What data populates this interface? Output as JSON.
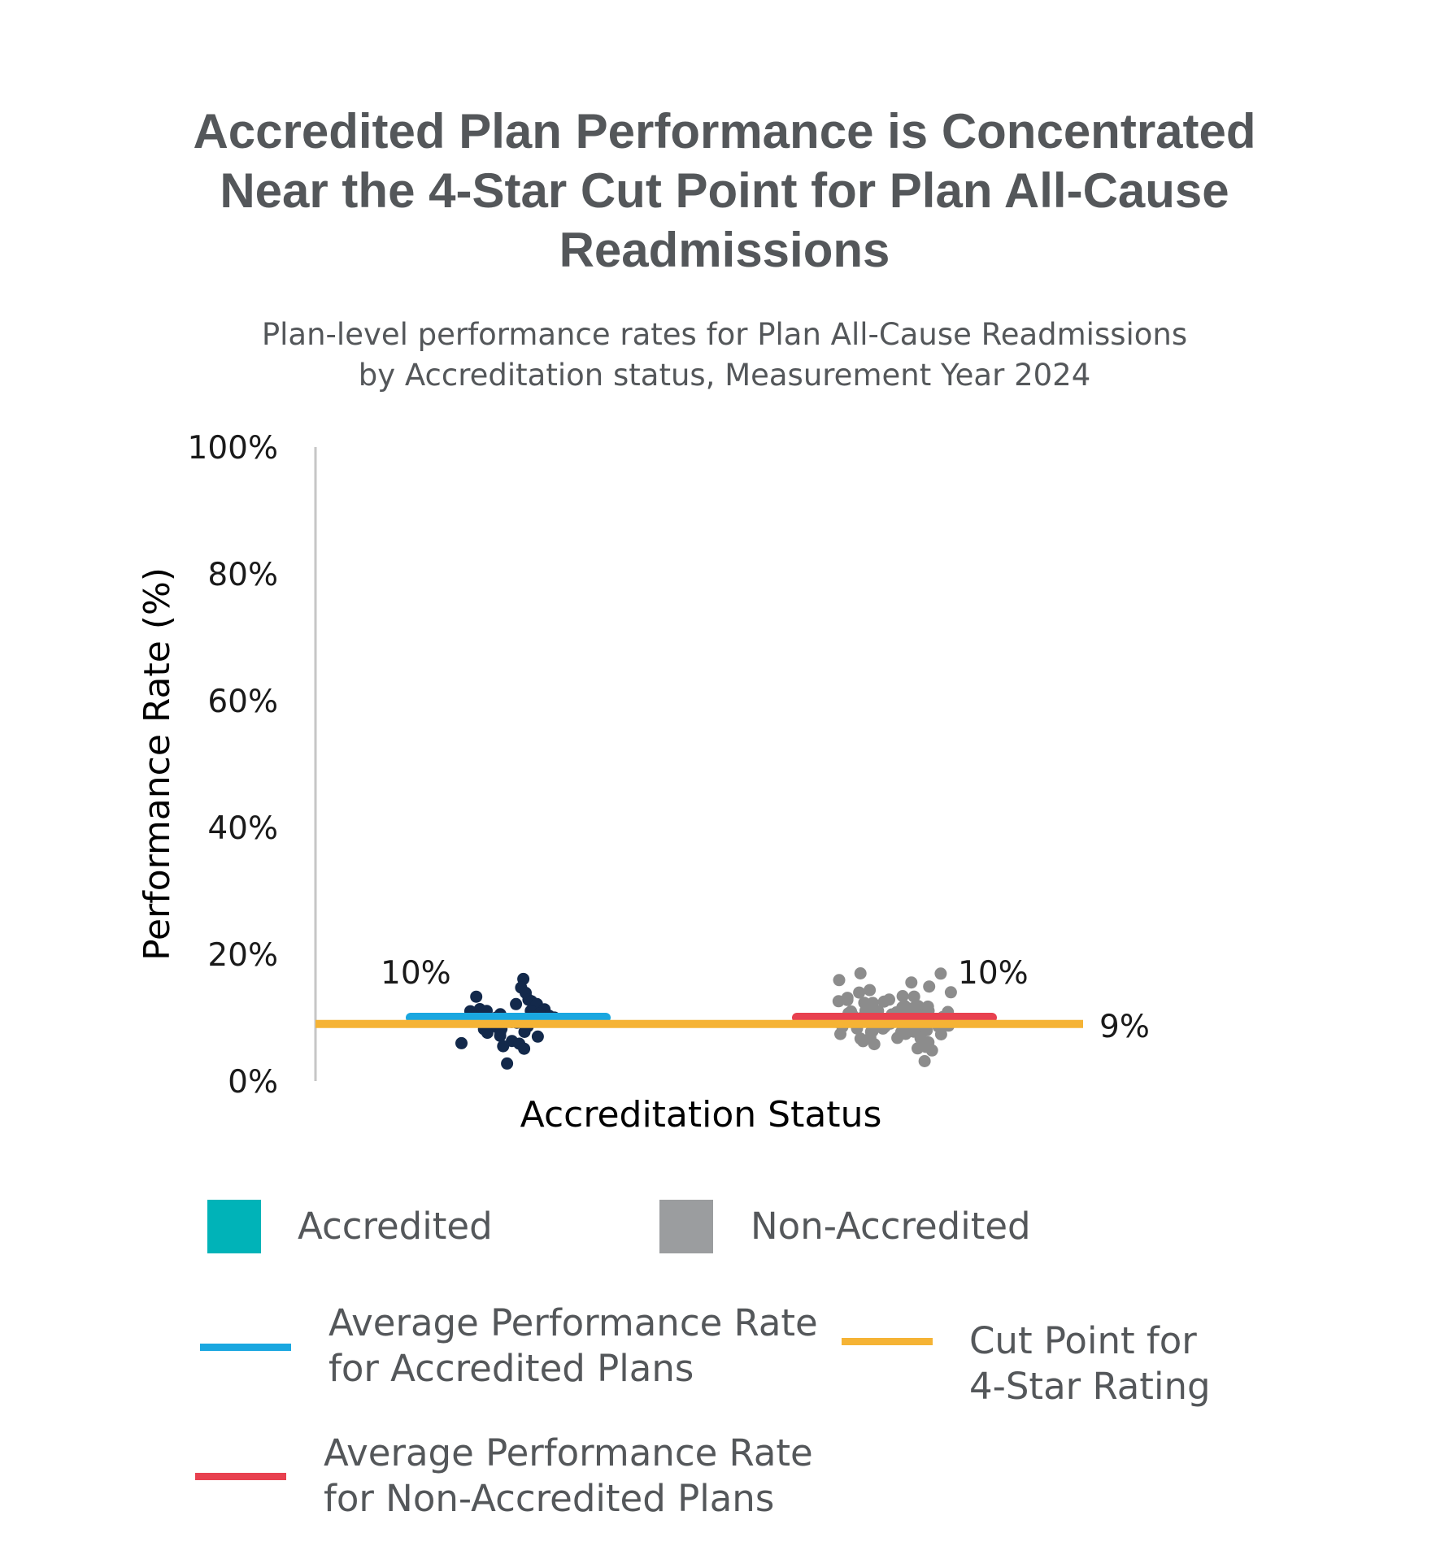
{
  "chart_data": {
    "type": "scatter",
    "title": "Accredited Plan Performance is Concentrated Near the 4-Star Cut Point for Plan All-Cause Readmissions",
    "title_lines": [
      "Accredited Plan Performance is Concentrated",
      "Near the 4-Star Cut Point for Plan All-Cause",
      "Readmissions"
    ],
    "subtitle_lines": [
      "Plan-level performance rates for Plan All-Cause Readmissions",
      "by Accreditation status, Measurement Year 2024"
    ],
    "xlabel": "Accreditation Status",
    "ylabel": "Performance Rate (%)",
    "ylim": [
      0,
      100
    ],
    "yticks": [
      0,
      20,
      40,
      60,
      80,
      100
    ],
    "ytick_labels": [
      "0%",
      "20%",
      "40%",
      "60%",
      "80%",
      "100%"
    ],
    "grid": false,
    "legend_position": "bottom",
    "categories": [
      "Accredited",
      "Non-Accredited"
    ],
    "series": [
      {
        "name": "Accredited",
        "color": "#00b3b8",
        "point_color": "#13294b",
        "values": [
          16,
          15,
          14,
          13.5,
          13,
          12.5,
          12,
          12,
          11.5,
          11.5,
          11,
          11,
          11,
          10.5,
          10.5,
          10.5,
          10,
          10,
          10,
          10,
          9.5,
          9.5,
          9.5,
          9,
          9,
          9,
          8.5,
          8.5,
          8,
          8,
          8,
          7.5,
          7.5,
          7,
          7,
          6.5,
          6,
          6,
          5.5,
          5,
          3
        ]
      },
      {
        "name": "Non-Accredited",
        "color": "#9b9d9f",
        "point_color": "#8c8c8c",
        "values": [
          17,
          17,
          16,
          15.5,
          15,
          14.5,
          14,
          14,
          13.5,
          13.5,
          13,
          13,
          13,
          12.5,
          12.5,
          12.5,
          12.5,
          12,
          12,
          12,
          12,
          12,
          11.5,
          11.5,
          11.5,
          11.5,
          11.5,
          11.5,
          11,
          11,
          11,
          11,
          11,
          11,
          11,
          10.5,
          10.5,
          10.5,
          10.5,
          10.5,
          10.5,
          10.5,
          10,
          10,
          10,
          10,
          10,
          10,
          10,
          10,
          9.5,
          9.5,
          9.5,
          9.5,
          9.5,
          9.5,
          9.5,
          9,
          9,
          9,
          9,
          9,
          9,
          9,
          8.5,
          8.5,
          8.5,
          8.5,
          8.5,
          8.5,
          8,
          8,
          8,
          8,
          8,
          7.5,
          7.5,
          7.5,
          7.5,
          7,
          7,
          7,
          6.5,
          6.5,
          6,
          6,
          5.5,
          5,
          5,
          3
        ]
      }
    ],
    "averages": [
      {
        "name": "Average Performance Rate for Accredited Plans",
        "category": "Accredited",
        "value": 10,
        "label": "10%",
        "color": "#1aa7e0"
      },
      {
        "name": "Average Performance Rate for Non-Accredited Plans",
        "category": "Non-Accredited",
        "value": 10,
        "label": "10%",
        "color": "#e8414f"
      }
    ],
    "cut_point": {
      "name": "Cut Point for 4-Star Rating",
      "value": 9,
      "label": "9%",
      "color": "#f5b335"
    }
  },
  "legend": {
    "accredited": {
      "label": "Accredited",
      "color": "#00b3b8"
    },
    "non_accredited": {
      "label": "Non-Accredited",
      "color": "#9b9d9f"
    },
    "avg_accredited": {
      "line1": "Average Performance Rate",
      "line2": "for Accredited Plans",
      "color": "#1aa7e0"
    },
    "avg_non_accredited": {
      "line1": "Average Performance Rate",
      "line2": "for Non-Accredited Plans",
      "color": "#e8414f"
    },
    "cut_point": {
      "line1": "Cut Point for",
      "line2": "4-Star Rating",
      "color": "#f5b335"
    }
  }
}
